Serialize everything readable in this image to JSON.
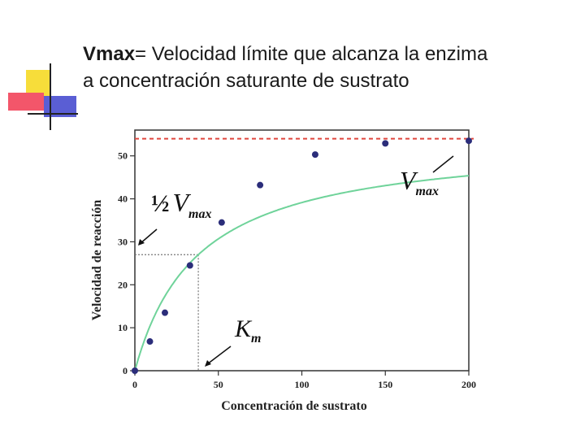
{
  "slide": {
    "title_term": "Vmax",
    "title_rest": "= Velocidad límite que alcanza la enzima",
    "title_line2": "a concentración saturante de sustrato"
  },
  "colors": {
    "curve": "#6fd39a",
    "points": "#2b2d7a",
    "vmax_line": "#e0463e",
    "guide": "#777777",
    "frame": "#333333"
  },
  "chart_data": {
    "type": "scatter",
    "xlabel": "Concentración de sustrato",
    "ylabel": "Velocidad de reacción",
    "xlim": [
      0,
      200
    ],
    "ylim": [
      0,
      56
    ],
    "x_ticks": [
      0,
      50,
      100,
      150,
      200
    ],
    "y_ticks": [
      0,
      10,
      20,
      30,
      40,
      50
    ],
    "grid": false,
    "series": [
      {
        "x": [
          0,
          9,
          18,
          33,
          52,
          75,
          108,
          150,
          200
        ],
        "y": [
          0,
          6.8,
          13.5,
          24.5,
          34.5,
          43.2,
          50.3,
          52.9,
          53.5
        ]
      }
    ],
    "vmax": 54,
    "km": 38,
    "half_vmax_label": {
      "half": "½",
      "v": "V",
      "sub": "max"
    },
    "km_label": {
      "main": "K",
      "sub": "m"
    },
    "vmax_label": {
      "main": "V",
      "sub": "max"
    }
  }
}
